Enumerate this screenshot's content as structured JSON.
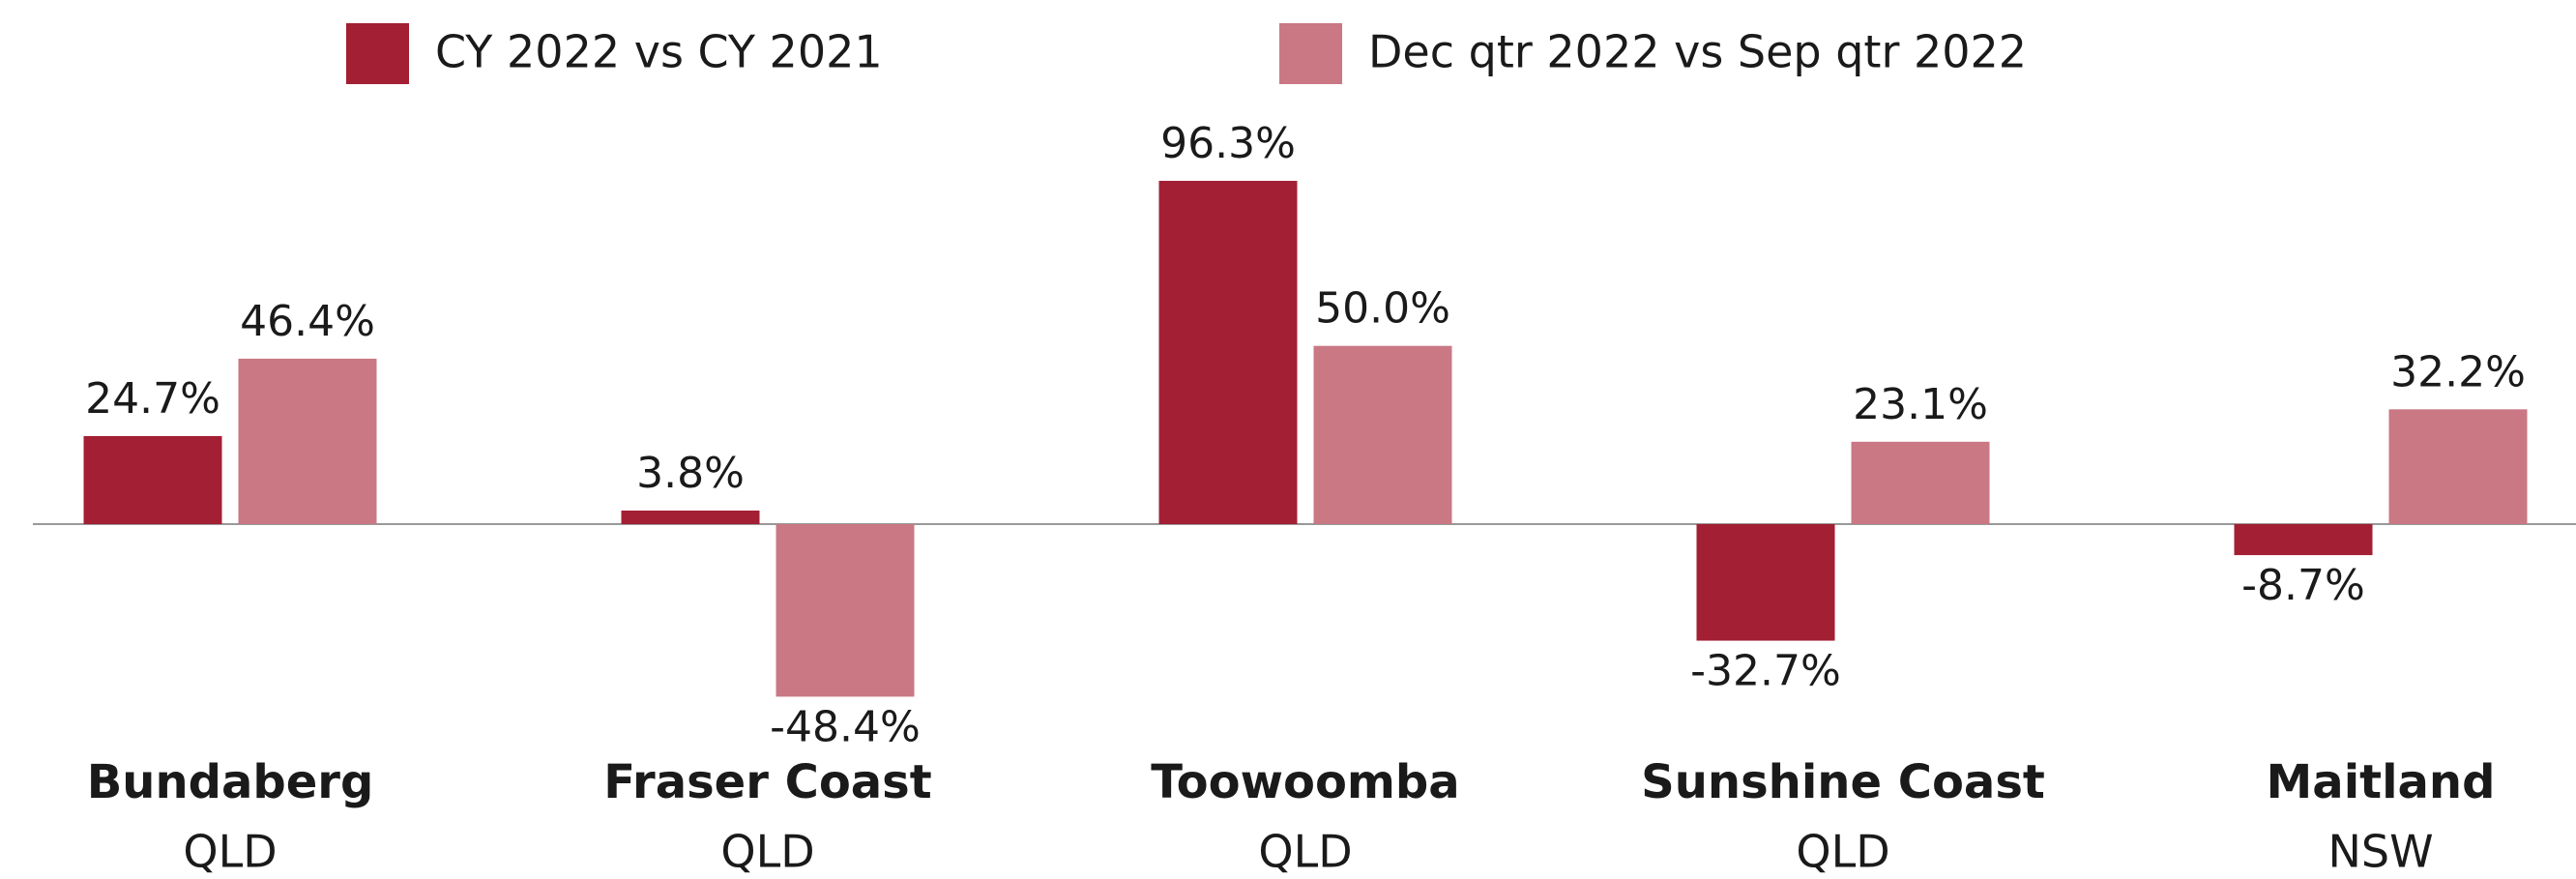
{
  "chart_data": {
    "type": "bar",
    "categories": [
      "Bundaberg",
      "Fraser Coast",
      "Toowoomba",
      "Sunshine Coast",
      "Maitland"
    ],
    "states": [
      "QLD",
      "QLD",
      "QLD",
      "QLD",
      "NSW"
    ],
    "series": [
      {
        "name": "CY 2022 vs CY 2021",
        "color": "#a31f34",
        "values": [
          24.7,
          3.8,
          96.3,
          -32.7,
          -8.7
        ],
        "value_labels": [
          "24.7%",
          "3.8%",
          "96.3%",
          "-32.7%",
          "-8.7%"
        ]
      },
      {
        "name": "Dec qtr 2022 vs Sep qtr 2022",
        "color": "#c97884",
        "values": [
          46.4,
          -48.4,
          50.0,
          23.1,
          32.2
        ],
        "value_labels": [
          "46.4%",
          "-48.4%",
          "50.0%",
          "23.1%",
          "32.2%"
        ]
      }
    ]
  }
}
